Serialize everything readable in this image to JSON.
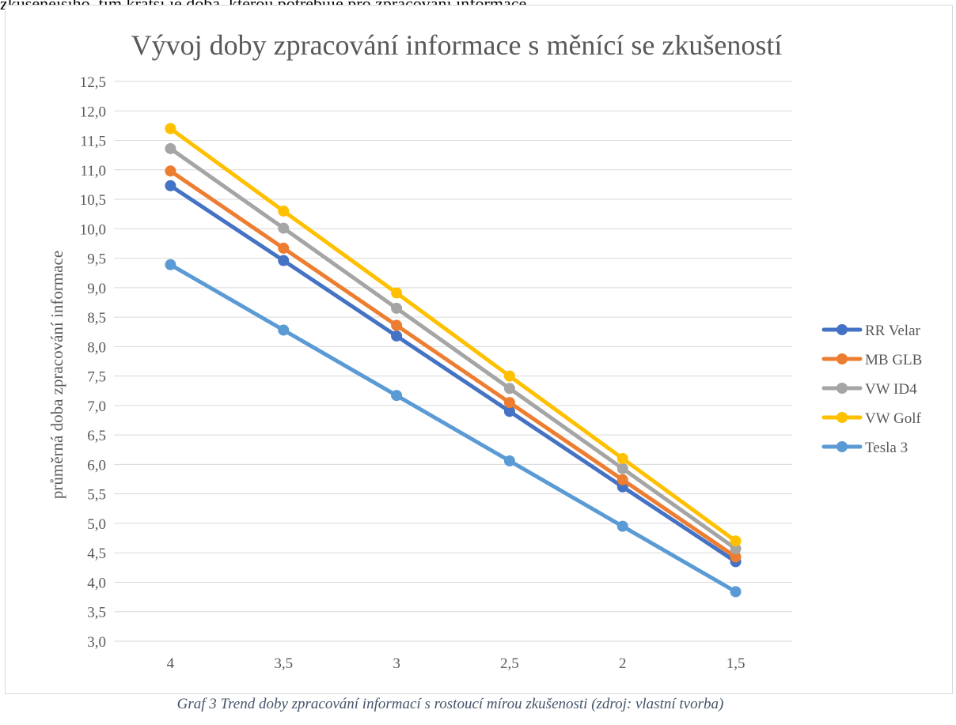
{
  "top_text": "zkušenějšího, tím kratší je doba, kterou potřebuje pro zpracování informace.",
  "caption": "Graf 3 Trend doby zpracování informací s rostoucí mírou zkušenosti (zdroj: vlastní tvorba)",
  "chart_data": {
    "type": "line",
    "title": "Vývoj doby zpracování informace s měnící se zkušeností",
    "xlabel": "",
    "ylabel": "průměrná doba zpracování informace",
    "categories": [
      "4",
      "3,5",
      "3",
      "2,5",
      "2",
      "1,5"
    ],
    "ylim": [
      3.0,
      12.5
    ],
    "ytick_step": 0.5,
    "yticks": [
      "3,0",
      "3,5",
      "4,0",
      "4,5",
      "5,0",
      "5,5",
      "6,0",
      "6,5",
      "7,0",
      "7,5",
      "8,0",
      "8,5",
      "9,0",
      "9,5",
      "10,0",
      "10,5",
      "11,0",
      "11,5",
      "12,0",
      "12,5"
    ],
    "grid": true,
    "legend_position": "right",
    "series": [
      {
        "name": "RR Velar",
        "color": "#4472c4",
        "values": [
          10.73,
          9.46,
          8.18,
          6.9,
          5.62,
          4.35
        ]
      },
      {
        "name": "MB GLB",
        "color": "#ed7d31",
        "values": [
          10.98,
          9.67,
          8.36,
          7.05,
          5.74,
          4.43
        ]
      },
      {
        "name": "VW ID4",
        "color": "#a5a5a5",
        "values": [
          11.36,
          10.01,
          8.65,
          7.29,
          5.93,
          4.57
        ]
      },
      {
        "name": "VW Golf",
        "color": "#ffc000",
        "values": [
          11.7,
          10.3,
          8.91,
          7.5,
          6.1,
          4.7
        ]
      },
      {
        "name": "Tesla 3",
        "color": "#5b9bd5",
        "values": [
          9.39,
          8.28,
          7.17,
          6.06,
          4.95,
          3.84
        ]
      }
    ]
  }
}
